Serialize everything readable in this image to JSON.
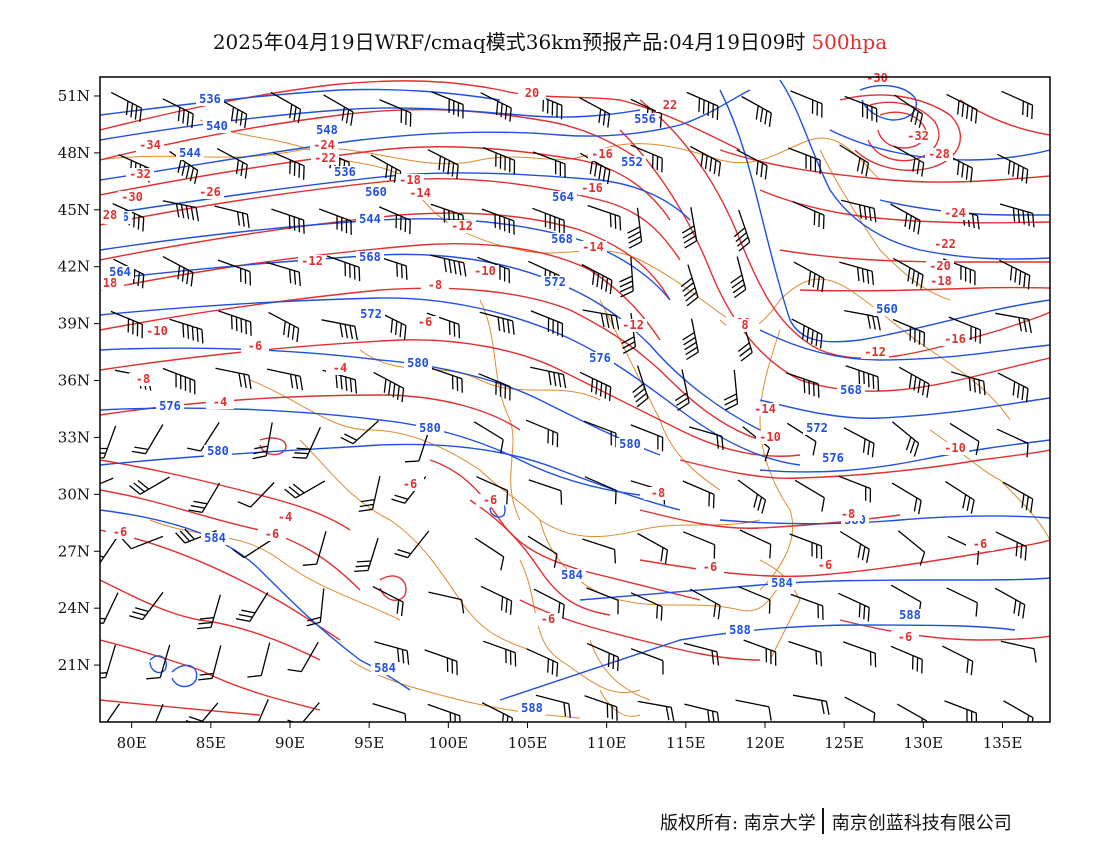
{
  "title": {
    "text": "2025年04月19日WRF/cmaq模式36km预报产品:04月19日09时",
    "level": "500hpa",
    "level_color": "#e03030"
  },
  "map": {
    "x_ticks": [
      "80E",
      "85E",
      "90E",
      "95E",
      "100E",
      "105E",
      "110E",
      "115E",
      "120E",
      "125E",
      "130E",
      "135E"
    ],
    "y_ticks": [
      "51N",
      "48N",
      "45N",
      "42N",
      "39N",
      "36N",
      "33N",
      "30N",
      "27N",
      "24N",
      "21N"
    ],
    "lon_range": [
      78,
      138
    ],
    "lat_range": [
      18,
      52
    ],
    "height_contour_color": "#2050e0",
    "temperature_contour_color": "#e03030",
    "border_color": "#e08a30",
    "wind_barb_color": "#000000",
    "height_labels": [
      "536",
      "540",
      "548",
      "544",
      "536",
      "552",
      "556",
      "560",
      "564",
      "568",
      "572",
      "576",
      "580",
      "584",
      "588"
    ],
    "temperature_labels": [
      "-34",
      "-32",
      "-30",
      "-28",
      "-26",
      "-24",
      "-22",
      "-20",
      "-18",
      "-16",
      "-14",
      "-12",
      "-10",
      "-8",
      "-6",
      "-4",
      "18",
      "28",
      "20",
      "22",
      "8"
    ]
  },
  "copyright": {
    "left": "版权所有: 南京大学",
    "right": "南京创蓝科技有限公司"
  }
}
